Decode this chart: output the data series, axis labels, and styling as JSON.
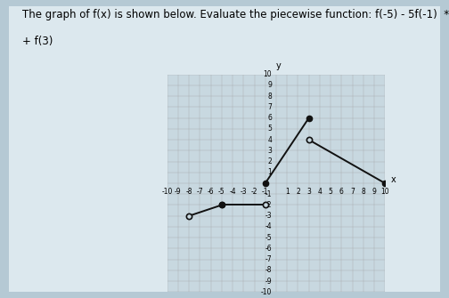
{
  "title_text_line1": "The graph of f(x) is shown below. Evaluate the piecewise function: f(-5) - 5f(-1)  *",
  "title_text_line2": "+ f(3)",
  "bg_color": "#c8d8e0",
  "grid_color": "#999999",
  "xlim": [
    -10,
    10
  ],
  "ylim": [
    -10,
    10
  ],
  "segments": [
    {
      "x": [
        -8,
        -5
      ],
      "y": [
        -3,
        -2
      ],
      "solid_start": false,
      "solid_end": true,
      "color": "#111111"
    },
    {
      "x": [
        -5,
        -1
      ],
      "y": [
        -2,
        -2
      ],
      "solid_start": true,
      "solid_end": false,
      "color": "#111111"
    },
    {
      "x": [
        -1,
        3
      ],
      "y": [
        0,
        6
      ],
      "solid_start": true,
      "solid_end": true,
      "color": "#111111"
    },
    {
      "x": [
        3,
        10
      ],
      "y": [
        4,
        0
      ],
      "solid_start": false,
      "solid_end": true,
      "color": "#111111"
    }
  ],
  "line_width": 1.4,
  "font_size_title": 8.5,
  "fig_bg": "#b5c9d4",
  "paper_bg": "#dce8ee",
  "marker_size": 4.5
}
